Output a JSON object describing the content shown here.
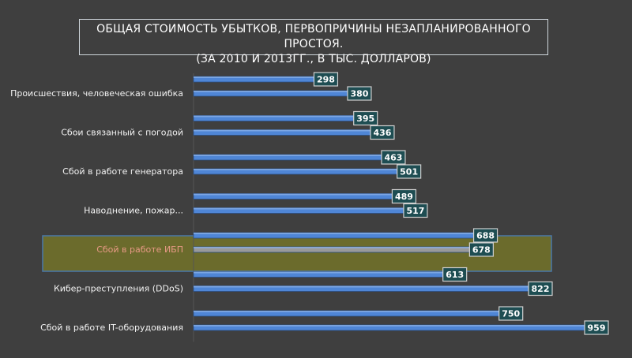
{
  "chart_data": {
    "type": "bar",
    "orientation": "horizontal",
    "title_line1": "ОБЩАЯ СТОИМОСТЬ УБЫТКОВ, ПЕРВОПРИЧИНЫ НЕЗАПЛАНИРОВАННОГО ПРОСТОЯ.",
    "title_line2": "(ЗА 2010 И 2013ГГ., В ТЫС. ДОЛЛАРОВ)",
    "xlim": [
      0,
      1000
    ],
    "categories": [
      "Происшествия, человеческая ошибка",
      "Сбои связанный с погодой",
      "Сбой в работе генератора",
      "Наводнение, пожар...",
      "Сбой в работе ИБП",
      "Кибер-преступления (DDoS)",
      "Сбой в работе IT-оборудования"
    ],
    "series": [
      {
        "values": [
          298,
          395,
          463,
          489,
          688,
          613,
          750
        ]
      },
      {
        "values": [
          380,
          436,
          501,
          517,
          678,
          822,
          959
        ]
      }
    ],
    "highlighted_category": "Сбой в работе ИБП",
    "colors": {
      "background": "#3f3f3f",
      "bar": "#4f86d6",
      "bar_highlight": "#9a9a9a",
      "label_box": "#1e4d52",
      "highlight_band": "#6b6b2c",
      "highlight_text": "#e89a86",
      "category_text": "#f2f2f2"
    }
  }
}
